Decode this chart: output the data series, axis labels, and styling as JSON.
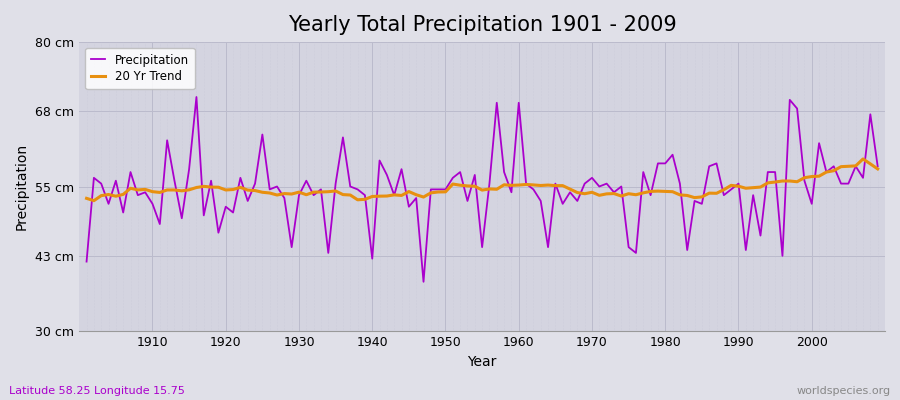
{
  "title": "Yearly Total Precipitation 1901 - 2009",
  "xlabel": "Year",
  "ylabel": "Precipitation",
  "subtitle": "Latitude 58.25 Longitude 15.75",
  "watermark": "worldspecies.org",
  "years": [
    1901,
    1902,
    1903,
    1904,
    1905,
    1906,
    1907,
    1908,
    1909,
    1910,
    1911,
    1912,
    1913,
    1914,
    1915,
    1916,
    1917,
    1918,
    1919,
    1920,
    1921,
    1922,
    1923,
    1924,
    1925,
    1926,
    1927,
    1928,
    1929,
    1930,
    1931,
    1932,
    1933,
    1934,
    1935,
    1936,
    1937,
    1938,
    1939,
    1940,
    1941,
    1942,
    1943,
    1944,
    1945,
    1946,
    1947,
    1948,
    1949,
    1950,
    1951,
    1952,
    1953,
    1954,
    1955,
    1956,
    1957,
    1958,
    1959,
    1960,
    1961,
    1962,
    1963,
    1964,
    1965,
    1966,
    1967,
    1968,
    1969,
    1970,
    1971,
    1972,
    1973,
    1974,
    1975,
    1976,
    1977,
    1978,
    1979,
    1980,
    1981,
    1982,
    1983,
    1984,
    1985,
    1986,
    1987,
    1988,
    1989,
    1990,
    1991,
    1992,
    1993,
    1994,
    1995,
    1996,
    1997,
    1998,
    1999,
    2000,
    2001,
    2002,
    2003,
    2004,
    2005,
    2006,
    2007,
    2008,
    2009
  ],
  "precip": [
    42.0,
    56.5,
    55.5,
    52.0,
    56.0,
    50.5,
    57.5,
    53.5,
    54.0,
    52.0,
    48.5,
    63.0,
    56.0,
    49.5,
    58.0,
    70.5,
    50.0,
    56.0,
    47.0,
    51.5,
    50.5,
    56.5,
    52.5,
    55.5,
    64.0,
    54.5,
    55.0,
    53.0,
    44.5,
    53.5,
    56.0,
    53.5,
    54.5,
    43.5,
    55.5,
    63.5,
    55.0,
    54.5,
    53.5,
    42.5,
    59.5,
    57.0,
    53.5,
    58.0,
    51.5,
    53.0,
    38.5,
    54.5,
    54.5,
    54.5,
    56.5,
    57.5,
    52.5,
    57.0,
    44.5,
    55.5,
    69.5,
    57.5,
    54.0,
    69.5,
    55.5,
    54.5,
    52.5,
    44.5,
    55.5,
    52.0,
    54.0,
    52.5,
    55.5,
    56.5,
    55.0,
    55.5,
    54.0,
    55.0,
    44.5,
    43.5,
    57.5,
    53.5,
    59.0,
    59.0,
    60.5,
    55.5,
    44.0,
    52.5,
    52.0,
    58.5,
    59.0,
    53.5,
    54.5,
    55.5,
    44.0,
    53.5,
    46.5,
    57.5,
    57.5,
    43.0,
    70.0,
    68.5,
    56.0,
    52.0,
    62.5,
    57.5,
    58.5,
    55.5,
    55.5,
    58.5,
    56.5,
    67.5,
    58.5
  ],
  "precip_color": "#aa00cc",
  "trend_color": "#e89010",
  "fig_bg_color": "#e0e0e8",
  "plot_bg_color": "#d4d4e0",
  "grid_color_h": "#c8c8d8",
  "grid_color_v": "#c0c0d0",
  "ylim": [
    30,
    80
  ],
  "yticks": [
    30,
    43,
    55,
    68,
    80
  ],
  "ytick_labels": [
    "30 cm",
    "43 cm",
    "55 cm",
    "68 cm",
    "80 cm"
  ],
  "xticks": [
    1910,
    1920,
    1930,
    1940,
    1950,
    1960,
    1970,
    1980,
    1990,
    2000
  ],
  "trend_window": 20,
  "title_fontsize": 15,
  "label_fontsize": 9,
  "subtitle_fontsize": 8,
  "watermark_fontsize": 8
}
